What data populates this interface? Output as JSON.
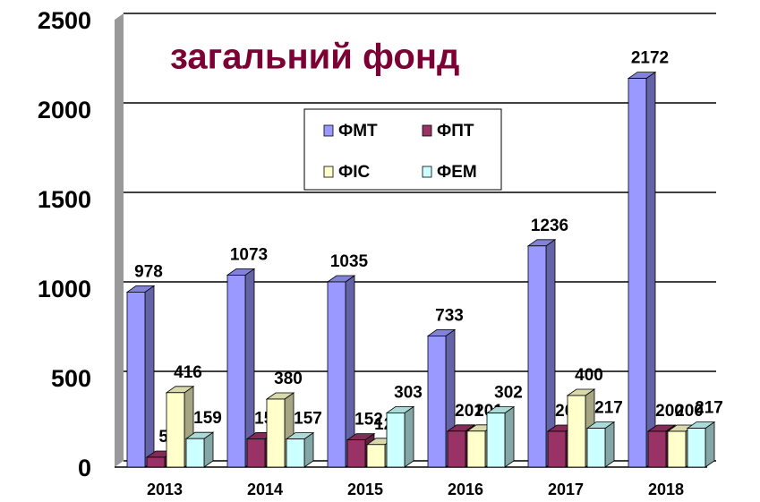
{
  "chart_data": {
    "type": "bar3d",
    "title": "загальний фонд",
    "categories": [
      "2013",
      "2014",
      "2015",
      "2016",
      "2017",
      "2018"
    ],
    "series": [
      {
        "name": "ФМТ",
        "color": "#9999ff",
        "values": [
          978,
          1073,
          1035,
          733,
          1236,
          2172
        ]
      },
      {
        "name": "ФПТ",
        "color": "#993366",
        "values": [
          55,
          158,
          152,
          201,
          200,
          200
        ]
      },
      {
        "name": "ФІС",
        "color": "#ffffcc",
        "values": [
          416,
          380,
          126,
          201,
          400,
          200
        ]
      },
      {
        "name": "ФЕМ",
        "color": "#ccffff",
        "values": [
          159,
          157,
          303,
          302,
          217,
          217
        ]
      }
    ],
    "ylim": [
      0,
      2500
    ],
    "yticks": [
      0,
      500,
      1000,
      1500,
      2000,
      2500
    ],
    "grid": true
  }
}
